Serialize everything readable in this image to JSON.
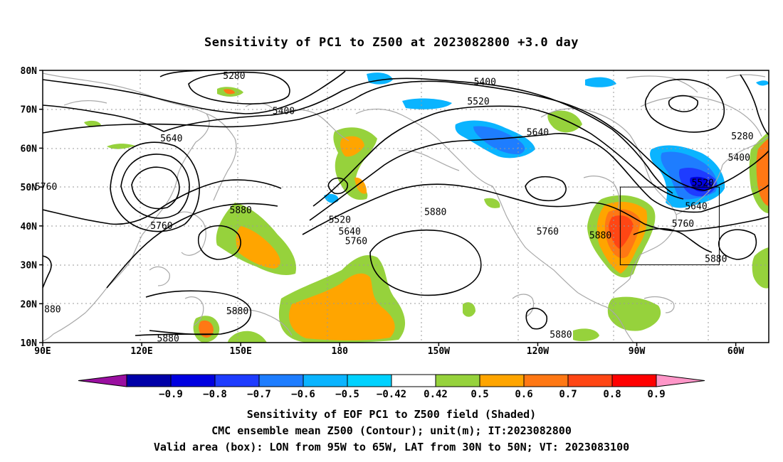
{
  "title": "Sensitivity of PC1 to Z500 at 2023082800 +3.0 day",
  "map": {
    "lat_labels": [
      "80N",
      "70N",
      "60N",
      "50N",
      "40N",
      "30N",
      "20N",
      "10N"
    ],
    "lon_labels": [
      "90E",
      "120E",
      "150E",
      "180",
      "150W",
      "120W",
      "90W",
      "60W"
    ],
    "valid_box": {
      "lon_from": "95W",
      "lon_to": "65W",
      "lat_from": "30N",
      "lat_to": "50N"
    },
    "contour_labels": [
      {
        "text": "5280",
        "lon": 148,
        "lat": 78.5
      },
      {
        "text": "5400",
        "lon": 163,
        "lat": 69.5
      },
      {
        "text": "5640",
        "lon": 129,
        "lat": 62.5
      },
      {
        "text": "5760",
        "lon": 91,
        "lat": 50
      },
      {
        "text": "5760",
        "lon": 126,
        "lat": 40
      },
      {
        "text": "5880",
        "lon": 150,
        "lat": 44
      },
      {
        "text": "5880",
        "lon": 149,
        "lat": 18
      },
      {
        "text": "5880",
        "lon": 128,
        "lat": 11
      },
      {
        "text": "880",
        "lon": 93,
        "lat": 18.5
      },
      {
        "text": "5400",
        "lon": -136,
        "lat": 77
      },
      {
        "text": "5520",
        "lon": -138,
        "lat": 72
      },
      {
        "text": "5640",
        "lon": -120,
        "lat": 64
      },
      {
        "text": "5520",
        "lon": -180,
        "lat": 41.5
      },
      {
        "text": "5640",
        "lon": -177,
        "lat": 38.5
      },
      {
        "text": "5760",
        "lon": -175,
        "lat": 36
      },
      {
        "text": "5880",
        "lon": -151,
        "lat": 43.5
      },
      {
        "text": "5760",
        "lon": -117,
        "lat": 38.5
      },
      {
        "text": "5880",
        "lon": -101,
        "lat": 37.5
      },
      {
        "text": "5520",
        "lon": -70,
        "lat": 51
      },
      {
        "text": "5640",
        "lon": -72,
        "lat": 45
      },
      {
        "text": "5760",
        "lon": -76,
        "lat": 40.5
      },
      {
        "text": "5880",
        "lon": -66,
        "lat": 31.5
      },
      {
        "text": "5280",
        "lon": -58,
        "lat": 63
      },
      {
        "text": "5400",
        "lon": -59,
        "lat": 57.5
      },
      {
        "text": "5880",
        "lon": -113,
        "lat": 12
      }
    ]
  },
  "colorbar": {
    "colors": [
      "#9a0fa0",
      "#0000a8",
      "#0000e0",
      "#1e3cff",
      "#1e7dff",
      "#0ab4ff",
      "#00d2ff",
      "#ffffff",
      "#96d23c",
      "#ffa500",
      "#ff7814",
      "#ff4614",
      "#ff0000",
      "#ff96c8"
    ],
    "labels": [
      "−0.9",
      "−0.8",
      "−0.7",
      "−0.6",
      "−0.5",
      "−0.42",
      "0.42",
      "0.5",
      "0.6",
      "0.7",
      "0.8",
      "0.9"
    ]
  },
  "captions": {
    "line1": "Sensitivity of EOF PC1 to Z500 field (Shaded)",
    "line2": "CMC ensemble mean Z500 (Contour); unit(m); IT:2023082800",
    "line3": "Valid area (box): LON from 95W to 65W, LAT from 30N to 50N; VT: 2023083100"
  }
}
